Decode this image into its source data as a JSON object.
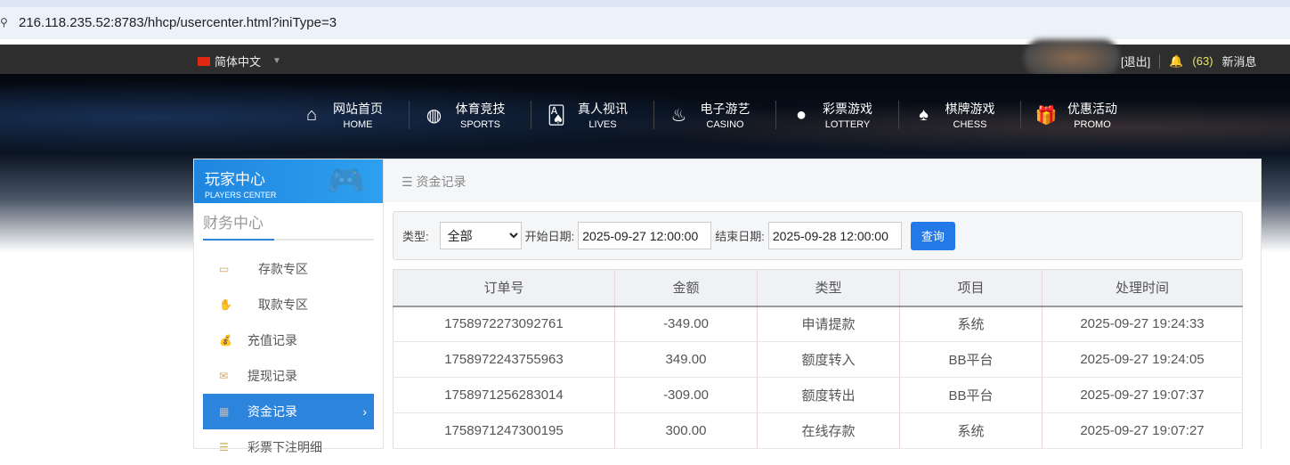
{
  "browser": {
    "url": "216.118.235.52:8783/hhcp/usercenter.html?iniType=3"
  },
  "topbar": {
    "language": "简体中文",
    "logout": "[退出]",
    "message_count": "(63)",
    "messages_label": "新消息"
  },
  "nav": [
    {
      "cn": "网站首页",
      "en": "HOME",
      "icon": "⌂"
    },
    {
      "cn": "体育竞技",
      "en": "SPORTS",
      "icon": "◍"
    },
    {
      "cn": "真人视讯",
      "en": "LIVES",
      "icon": "🂡"
    },
    {
      "cn": "电子游艺",
      "en": "CASINO",
      "icon": "♨"
    },
    {
      "cn": "彩票游戏",
      "en": "LOTTERY",
      "icon": "●"
    },
    {
      "cn": "棋牌游戏",
      "en": "CHESS",
      "icon": "♠"
    },
    {
      "cn": "优惠活动",
      "en": "PROMO",
      "icon": "🎁"
    }
  ],
  "sidebar": {
    "title": "玩家中心",
    "subtitle": "PLAYERS CENTER",
    "section": "财务中心",
    "items": [
      {
        "label": "存款专区",
        "icon": "▭"
      },
      {
        "label": "取款专区",
        "icon": "✋"
      },
      {
        "label": "充值记录",
        "icon": "💰"
      },
      {
        "label": "提现记录",
        "icon": "✉"
      },
      {
        "label": "资金记录",
        "icon": "▦",
        "active": true
      },
      {
        "label": "彩票下注明细",
        "icon": "☰"
      }
    ]
  },
  "main": {
    "breadcrumb": "资金记录",
    "filter": {
      "type_label": "类型:",
      "type_value": "全部",
      "start_label": "开始日期:",
      "start_value": "2025-09-27 12:00:00",
      "end_label": "结束日期:",
      "end_value": "2025-09-28 12:00:00",
      "search_button": "查询"
    },
    "table": {
      "headers": [
        "订单号",
        "金额",
        "类型",
        "项目",
        "处理时间"
      ],
      "rows": [
        [
          "1758972273092761",
          "-349.00",
          "申请提款",
          "系统",
          "2025-09-27 19:24:33"
        ],
        [
          "1758972243755963",
          "349.00",
          "额度转入",
          "BB平台",
          "2025-09-27 19:24:05"
        ],
        [
          "1758971256283014",
          "-309.00",
          "额度转出",
          "BB平台",
          "2025-09-27 19:07:37"
        ],
        [
          "1758971247300195",
          "300.00",
          "在线存款",
          "系统",
          "2025-09-27 19:07:27"
        ]
      ]
    }
  }
}
